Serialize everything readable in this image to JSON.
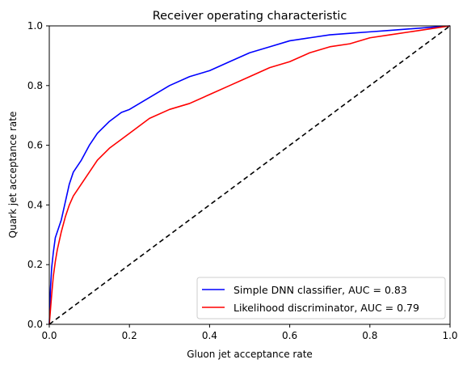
{
  "chart_data": {
    "type": "line",
    "title": "Receiver operating characteristic",
    "xlabel": "Gluon jet acceptance rate",
    "ylabel": "Quark jet acceptance rate",
    "xlim": [
      0.0,
      1.0
    ],
    "ylim": [
      0.0,
      1.0
    ],
    "xticks": [
      "0.0",
      "0.2",
      "0.4",
      "0.6",
      "0.8",
      "1.0"
    ],
    "yticks": [
      "0.0",
      "0.2",
      "0.4",
      "0.6",
      "0.8",
      "1.0"
    ],
    "grid": false,
    "legend_position": "lower-right",
    "series": [
      {
        "name": "Simple DNN classifier, AUC = 0.83",
        "color": "#0000ff",
        "x": [
          0.0,
          0.003,
          0.006,
          0.01,
          0.015,
          0.02,
          0.03,
          0.04,
          0.05,
          0.06,
          0.07,
          0.08,
          0.1,
          0.12,
          0.15,
          0.18,
          0.2,
          0.25,
          0.3,
          0.35,
          0.4,
          0.45,
          0.5,
          0.55,
          0.6,
          0.65,
          0.7,
          0.75,
          0.8,
          0.85,
          0.9,
          0.95,
          1.0
        ],
        "y": [
          0.0,
          0.12,
          0.19,
          0.24,
          0.29,
          0.31,
          0.35,
          0.41,
          0.47,
          0.51,
          0.53,
          0.55,
          0.6,
          0.64,
          0.68,
          0.71,
          0.72,
          0.76,
          0.8,
          0.83,
          0.85,
          0.88,
          0.91,
          0.93,
          0.95,
          0.96,
          0.97,
          0.975,
          0.98,
          0.985,
          0.99,
          0.995,
          1.0
        ]
      },
      {
        "name": "Likelihood discriminator, AUC = 0.79",
        "color": "#ff0000",
        "x": [
          0.0,
          0.003,
          0.006,
          0.01,
          0.015,
          0.02,
          0.03,
          0.04,
          0.05,
          0.06,
          0.07,
          0.08,
          0.1,
          0.12,
          0.15,
          0.18,
          0.2,
          0.25,
          0.3,
          0.35,
          0.4,
          0.45,
          0.5,
          0.55,
          0.6,
          0.65,
          0.7,
          0.75,
          0.8,
          0.85,
          0.9,
          0.95,
          1.0
        ],
        "y": [
          0.0,
          0.05,
          0.1,
          0.16,
          0.21,
          0.25,
          0.31,
          0.36,
          0.4,
          0.43,
          0.45,
          0.47,
          0.51,
          0.55,
          0.59,
          0.62,
          0.64,
          0.69,
          0.72,
          0.74,
          0.77,
          0.8,
          0.83,
          0.86,
          0.88,
          0.91,
          0.93,
          0.94,
          0.96,
          0.97,
          0.98,
          0.99,
          1.0
        ]
      },
      {
        "name": "",
        "color": "#000000",
        "style": "dashed",
        "x": [
          0.0,
          1.0
        ],
        "y": [
          0.0,
          1.0
        ]
      }
    ]
  }
}
